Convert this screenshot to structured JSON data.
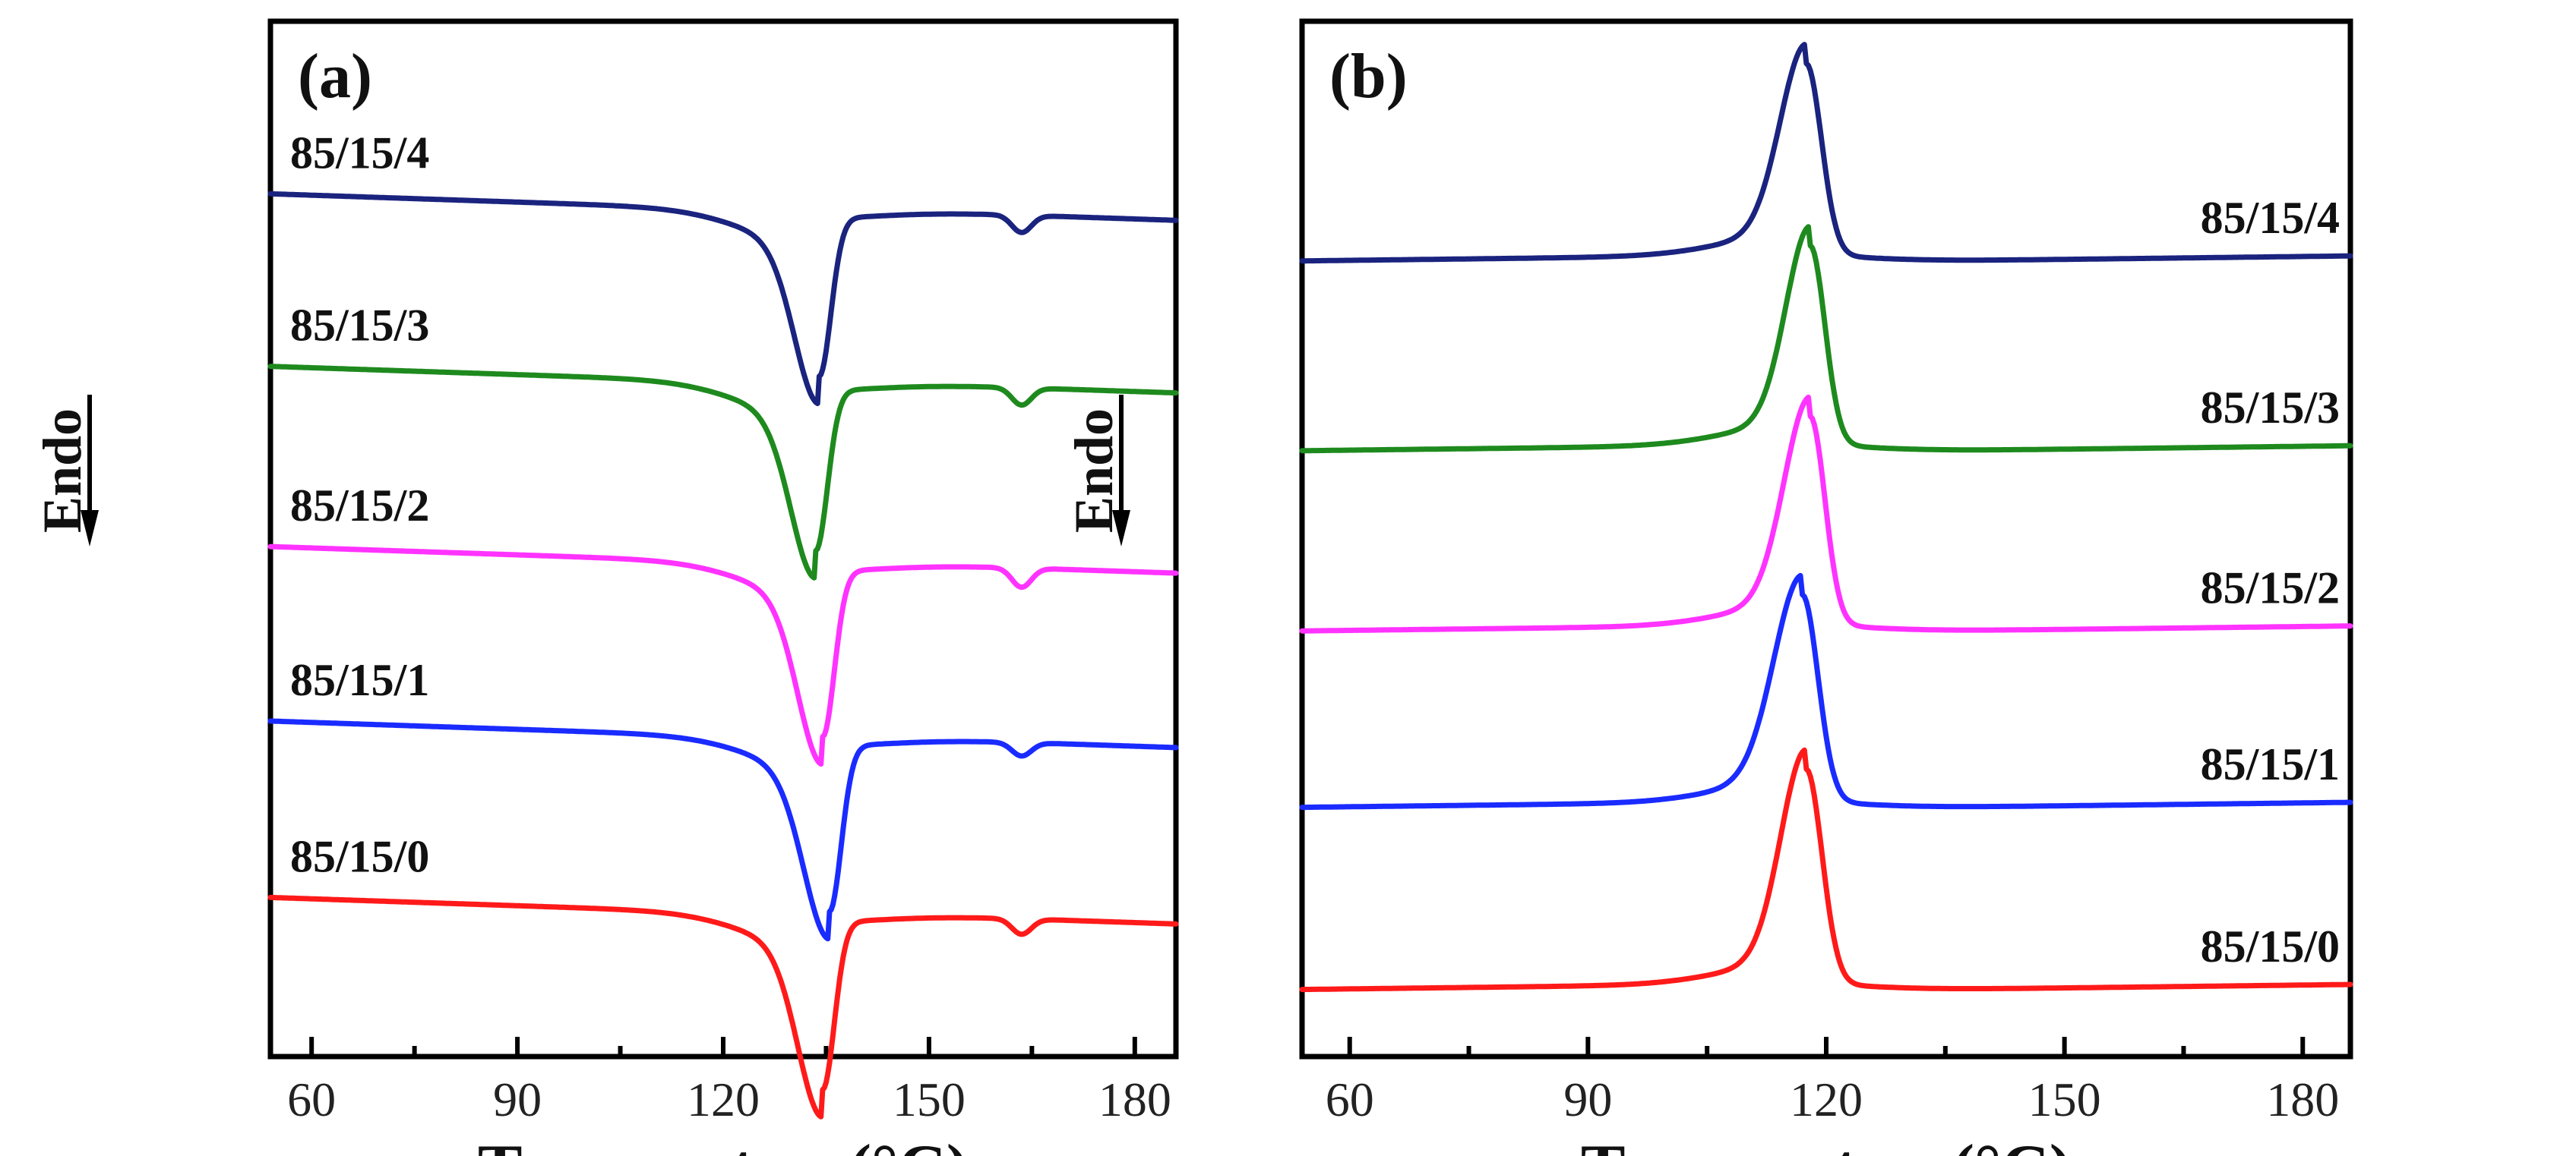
{
  "chart_data": [
    {
      "type": "line",
      "panel_label": "(a)",
      "xlabel": "Temperature(°C)",
      "ylabel": "Endo",
      "y_direction_arrow": "down",
      "xlim": [
        54,
        186
      ],
      "x_ticks": [
        60,
        90,
        120,
        150,
        180
      ],
      "x_tick_labels": [
        "60",
        "90",
        "120",
        "150",
        "180"
      ],
      "y_ticks": false,
      "ylim": [
        0,
        5.4
      ],
      "grid": false,
      "label_position": "left-above-curve",
      "series": [
        {
          "name": "85/15/4",
          "color": "#1a237e",
          "baseline": 4.5,
          "slope": -0.0012,
          "peak_x": 134.0,
          "peak_depth": 0.82,
          "width_left": 5.0,
          "width_right": 2.4,
          "shoulder_x": 163.5,
          "shoulder_depth": 0.09
        },
        {
          "name": "85/15/3",
          "color": "#1e8a1e",
          "baseline": 3.6,
          "slope": -0.0012,
          "peak_x": 133.5,
          "peak_depth": 0.83,
          "width_left": 5.0,
          "width_right": 2.4,
          "shoulder_x": 163.5,
          "shoulder_depth": 0.09
        },
        {
          "name": "85/15/2",
          "color": "#ff33ff",
          "baseline": 2.66,
          "slope": -0.0012,
          "peak_x": 134.5,
          "peak_depth": 0.86,
          "width_left": 5.0,
          "width_right": 2.4,
          "shoulder_x": 163.5,
          "shoulder_depth": 0.1
        },
        {
          "name": "85/15/1",
          "color": "#1a2bff",
          "baseline": 1.75,
          "slope": -0.0012,
          "peak_x": 135.5,
          "peak_depth": 0.86,
          "width_left": 5.2,
          "width_right": 2.4,
          "shoulder_x": 163.5,
          "shoulder_depth": 0.07
        },
        {
          "name": "85/15/0",
          "color": "#ff1a1a",
          "baseline": 0.83,
          "slope": -0.0012,
          "peak_x": 134.5,
          "peak_depth": 0.87,
          "width_left": 5.0,
          "width_right": 2.4,
          "shoulder_x": 163.5,
          "shoulder_depth": 0.08
        }
      ]
    },
    {
      "type": "line",
      "panel_label": "(b)",
      "xlabel": "Temperature(°C)",
      "ylabel": "Endo",
      "y_direction_arrow": "down",
      "xlim": [
        54,
        186
      ],
      "x_ticks": [
        60,
        90,
        120,
        150,
        180
      ],
      "x_tick_labels": [
        "60",
        "90",
        "120",
        "150",
        "180"
      ],
      "y_ticks": false,
      "ylim": [
        0,
        5.4
      ],
      "grid": false,
      "label_position": "right-above-curve",
      "series": [
        {
          "name": "85/15/4",
          "color": "#1a237e",
          "baseline": 4.15,
          "slope": 0.0005,
          "peak_x": 117.5,
          "peak_height": 0.98,
          "width_left": 4.6,
          "width_right": 2.7
        },
        {
          "name": "85/15/3",
          "color": "#1e8a1e",
          "baseline": 3.16,
          "slope": 0.0005,
          "peak_x": 118.0,
          "peak_height": 1.02,
          "width_left": 4.3,
          "width_right": 2.6
        },
        {
          "name": "85/15/2",
          "color": "#ff33ff",
          "baseline": 2.22,
          "slope": 0.0005,
          "peak_x": 118.0,
          "peak_height": 1.07,
          "width_left": 4.6,
          "width_right": 2.6
        },
        {
          "name": "85/15/1",
          "color": "#1a2bff",
          "baseline": 1.3,
          "slope": 0.0005,
          "peak_x": 117.0,
          "peak_height": 1.06,
          "width_left": 5.0,
          "width_right": 2.8
        },
        {
          "name": "85/15/0",
          "color": "#ff1a1a",
          "baseline": 0.35,
          "slope": 0.0005,
          "peak_x": 117.5,
          "peak_height": 1.1,
          "width_left": 4.5,
          "width_right": 2.8
        }
      ]
    }
  ]
}
